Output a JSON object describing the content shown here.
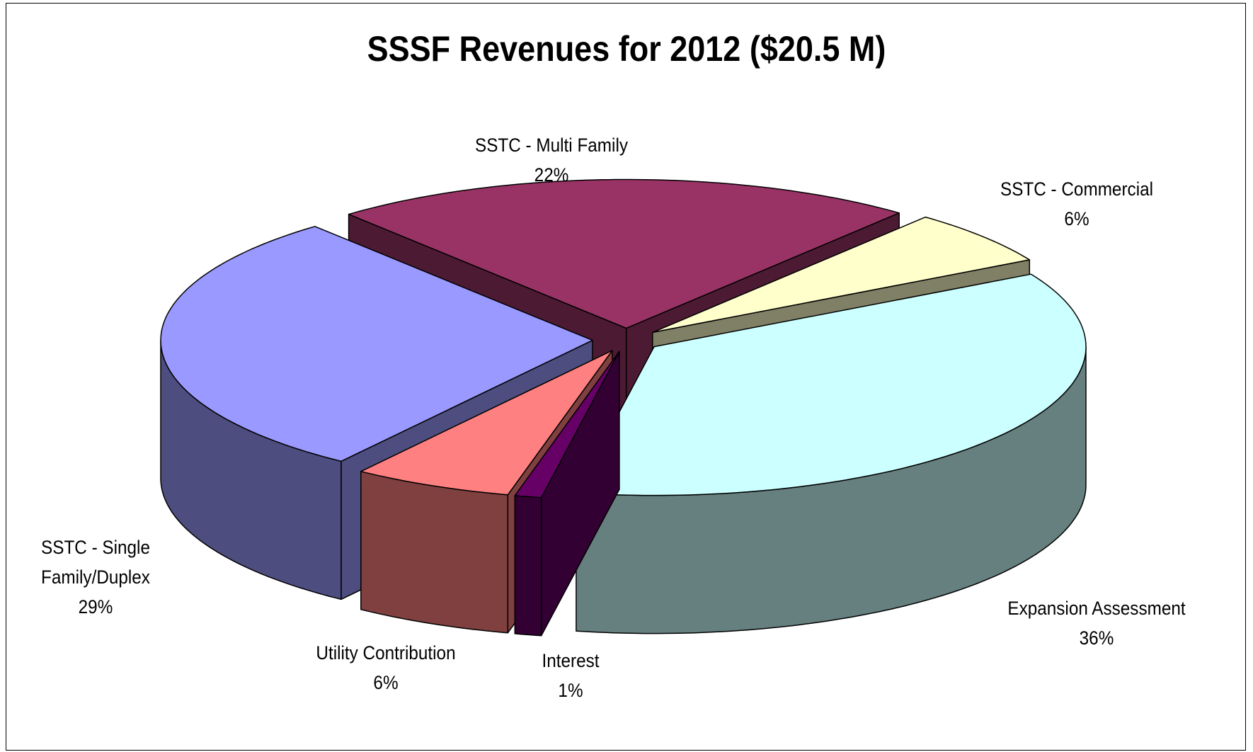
{
  "chart_data": {
    "type": "pie3d",
    "title": "SSSF Revenues for 2012 ($20.5 M)",
    "categories": [
      "SSTC - Multi Family",
      "SSTC - Commercial",
      "Expansion Assessment",
      "Interest",
      "Utility Contribution",
      "SSTC - Single Family/Duplex"
    ],
    "values": [
      22,
      6,
      36,
      1,
      6,
      29
    ],
    "value_labels": [
      "22%",
      "6%",
      "36%",
      "1%",
      "6%",
      "29%"
    ],
    "colors": [
      "#993366",
      "#ffffcc",
      "#ccffff",
      "#660066",
      "#ff8080",
      "#9999ff"
    ]
  }
}
